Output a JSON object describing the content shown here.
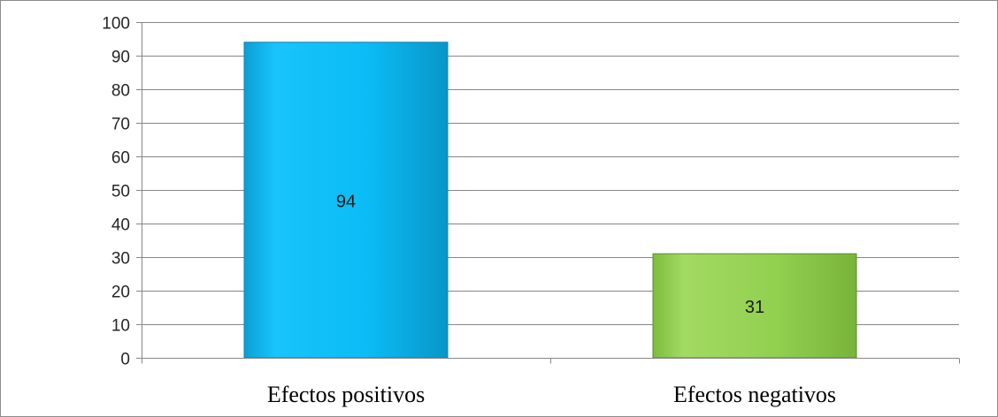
{
  "chart_data": {
    "type": "bar",
    "title": "",
    "xlabel": "",
    "ylabel": "",
    "categories": [
      "Efectos positivos",
      "Efectos negativos"
    ],
    "values": [
      94,
      31
    ],
    "data_labels": [
      "94",
      "31"
    ],
    "colors": [
      "#0bbcf5",
      "#92d050"
    ],
    "ylim": [
      0,
      100
    ],
    "yticks": [
      0,
      10,
      20,
      30,
      40,
      50,
      60,
      70,
      80,
      90,
      100
    ],
    "ytick_labels": [
      "0",
      "10",
      "20",
      "30",
      "40",
      "50",
      "60",
      "70",
      "80",
      "90",
      "100"
    ],
    "grid": true,
    "legend": "none"
  }
}
